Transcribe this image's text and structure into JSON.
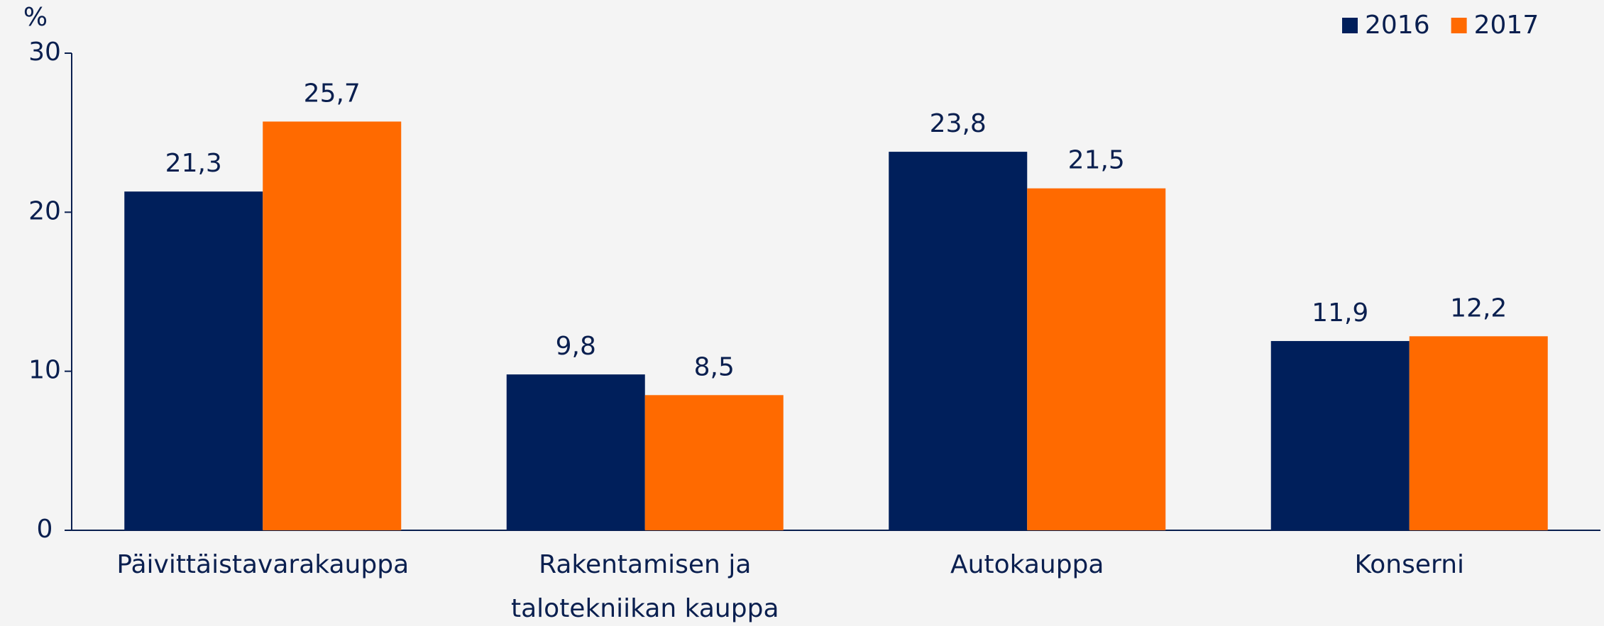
{
  "chart_data": {
    "type": "bar",
    "y_label": "%",
    "categories": [
      "Päivittäistavarakauppa",
      "Rakentamisen ja talotekniikan kauppa",
      "Autokauppa",
      "Konserni"
    ],
    "series": [
      {
        "name": "2016",
        "color": "#001f5b",
        "values": [
          21.3,
          9.8,
          23.8,
          11.9
        ],
        "value_labels": [
          "21,3",
          "9,8",
          "23,8",
          "11,9"
        ]
      },
      {
        "name": "2017",
        "color": "#ff6a00",
        "values": [
          25.7,
          8.5,
          21.5,
          12.2
        ],
        "value_labels": [
          "25,7",
          "8,5",
          "21,5",
          "12,2"
        ]
      }
    ],
    "ylim": [
      0,
      30
    ],
    "yticks": [
      0,
      10,
      20,
      30
    ],
    "grid": false,
    "legend": "top-right"
  }
}
